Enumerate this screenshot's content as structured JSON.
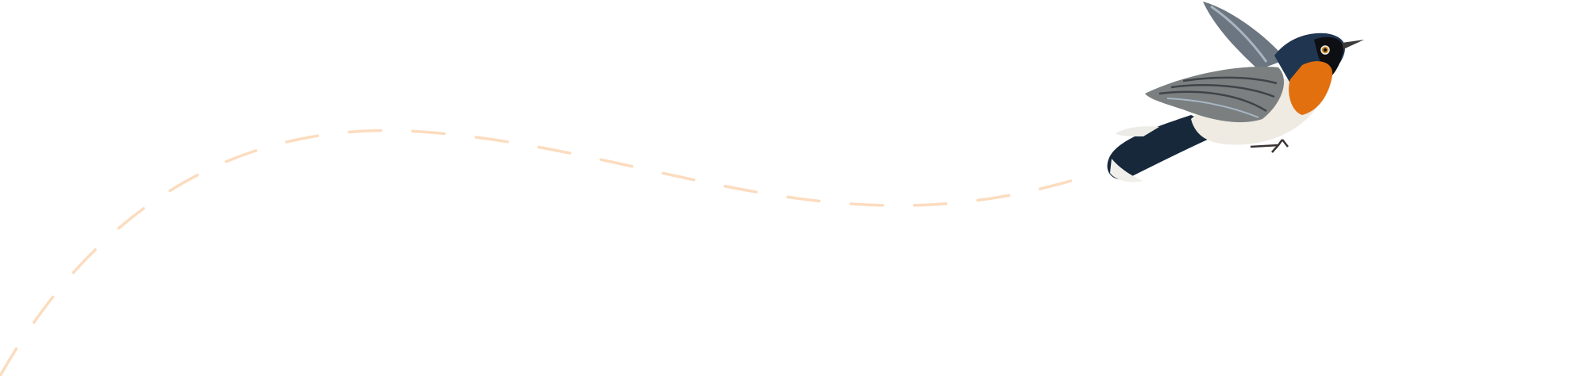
{
  "illustration": {
    "subject": "bird-icon",
    "colors": {
      "flight_path": "#fcdcbf",
      "bird_head": "#1f3550",
      "bird_throat": "#e2700f",
      "bird_belly": "#efeae2",
      "bird_wing": "#7b7f80",
      "bird_tail": "#17283a"
    }
  }
}
